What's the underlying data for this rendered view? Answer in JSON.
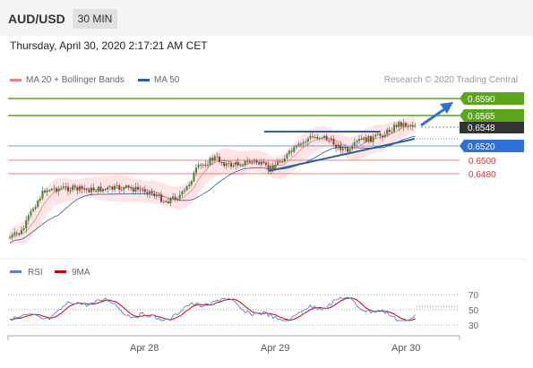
{
  "header": {
    "pair": "AUD/USD",
    "interval": "30 MIN"
  },
  "datetime": "Thursday, April 30, 2020 2:17:21 AM CET",
  "legend": {
    "ma20_label": "MA 20 + Bollinger Bands",
    "ma50_label": "MA 50",
    "credit": "Research © 2020 Trading Central",
    "rsi_label": "RSI",
    "ma9_label": "9MA"
  },
  "colors": {
    "ma20": "#f08080",
    "ma50": "#2c5fa0",
    "rsi": "#5b7fd6",
    "ma9": "#cc0000",
    "green": "#5aa51c",
    "blue": "#2f6fd8",
    "current": "#333333"
  },
  "levels": [
    {
      "value": "0.6590",
      "type": "resistance"
    },
    {
      "value": "0.6565",
      "type": "resistance"
    },
    {
      "value": "0.6548",
      "type": "current"
    },
    {
      "value": "0.6520",
      "type": "pivot"
    },
    {
      "value": "0.6500",
      "type": "support"
    },
    {
      "value": "0.6480",
      "type": "support"
    }
  ],
  "rsi_ticks": [
    "70",
    "50",
    "30"
  ],
  "x_ticks": [
    "Apr 28",
    "Apr 29",
    "Apr 30"
  ]
}
